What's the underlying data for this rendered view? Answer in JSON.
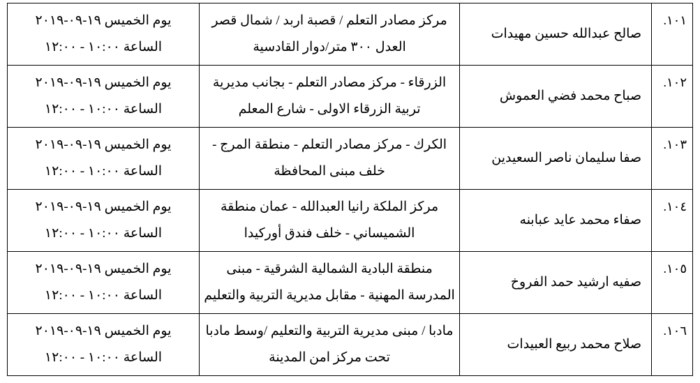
{
  "columns": {
    "index_width_pct": 6,
    "name_width_pct": 28,
    "location_width_pct": 38,
    "datetime_width_pct": 28
  },
  "rows": [
    {
      "index": "١٠١.",
      "name": "صالح عبدالله حسين مهيدات",
      "location": "مركز مصادر التعلم / قصبة  اربد /  شمال قصر العدل ٣٠٠ متر/دوار القادسية",
      "date_line": "يوم الخميس ١٩-٠٩-٢٠١٩",
      "time_line": "الساعة ١٠:٠٠ - ١٢:٠٠"
    },
    {
      "index": "١٠٢.",
      "name": "صباح محمد فضي العموش",
      "location": "الزرقاء - مركز مصادر التعلم - بجانب مديرية تربية الزرقاء الاولى - شارع المعلم",
      "date_line": "يوم الخميس ١٩-٠٩-٢٠١٩",
      "time_line": "الساعة ١٠:٠٠ - ١٢:٠٠"
    },
    {
      "index": "١٠٣.",
      "name": "صفا سليمان ناصر السعيدين",
      "location": "الكرك - مركز مصادر التعلم - منطقة المرج - خلف مبنى المحافظة",
      "date_line": "يوم الخميس ١٩-٠٩-٢٠١٩",
      "time_line": "الساعة ١٠:٠٠ - ١٢:٠٠"
    },
    {
      "index": "١٠٤.",
      "name": "صفاء محمد عايد عبابنه",
      "location": "مركز الملكة رانيا العبدالله - عمان منطقة الشميساني - خلف فندق أوركيدا",
      "date_line": "يوم الخميس ١٩-٠٩-٢٠١٩",
      "time_line": "الساعة ١٠:٠٠ - ١٢:٠٠"
    },
    {
      "index": "١٠٥.",
      "name": "صفيه ارشيد حمد الفروخ",
      "location": "منطقة البادية الشمالية الشرقية - مبنى المدرسة المهنية - مقابل مديرية التربية والتعليم",
      "date_line": "يوم الخميس ١٩-٠٩-٢٠١٩",
      "time_line": "الساعة ١٠:٠٠ - ١٢:٠٠"
    },
    {
      "index": "١٠٦.",
      "name": "صلاح محمد ربيع العبيدات",
      "location": "مادبا / مبنى مديرية التربية والتعليم /وسط مادبا تحت مركز امن المدينة",
      "date_line": "يوم الخميس ١٩-٠٩-٢٠١٩",
      "time_line": "الساعة ١٠:٠٠ - ١٢:٠٠"
    }
  ]
}
